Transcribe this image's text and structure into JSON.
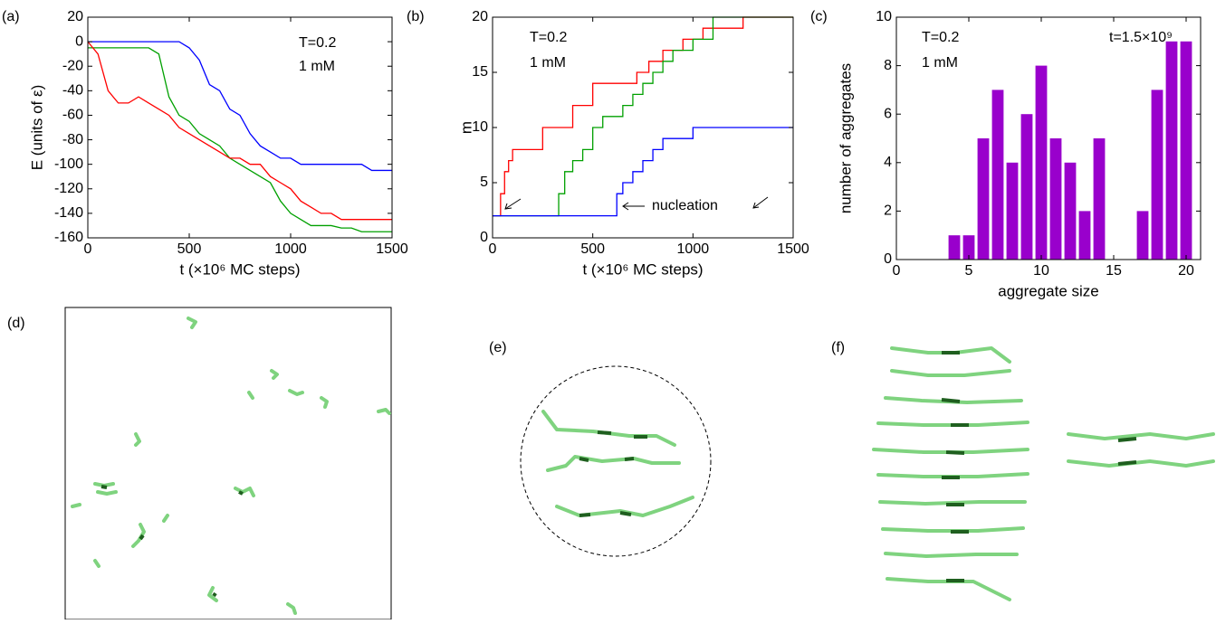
{
  "chart_data": [
    {
      "type": "line",
      "panel_label": "(a)",
      "xlabel": "t (×10⁶ MC steps)",
      "ylabel": "E (units of ε)",
      "annotations": [
        "T=0.2",
        "1 mM"
      ],
      "xlim": [
        0,
        1500
      ],
      "ylim": [
        -160,
        20
      ],
      "xticks": [
        0,
        500,
        1000,
        1500
      ],
      "yticks": [
        -160,
        -140,
        -120,
        -100,
        -80,
        -60,
        -40,
        -20,
        0,
        20
      ],
      "x": [
        0,
        50,
        100,
        150,
        200,
        250,
        300,
        350,
        400,
        450,
        500,
        550,
        600,
        650,
        700,
        750,
        800,
        850,
        900,
        950,
        1000,
        1050,
        1100,
        1150,
        1200,
        1250,
        1300,
        1350,
        1400,
        1450,
        1500
      ],
      "series": [
        {
          "color": "#0000ff",
          "values": [
            0,
            0,
            0,
            0,
            0,
            0,
            0,
            0,
            0,
            0,
            -5,
            -15,
            -35,
            -40,
            -55,
            -60,
            -75,
            -85,
            -90,
            -95,
            -95,
            -100,
            -100,
            -100,
            -100,
            -100,
            -100,
            -100,
            -105,
            -105,
            -105
          ]
        },
        {
          "color": "#00a000",
          "values": [
            -5,
            -5,
            -5,
            -5,
            -5,
            -5,
            -5,
            -10,
            -45,
            -60,
            -65,
            -75,
            -80,
            -85,
            -95,
            -100,
            -105,
            -110,
            -115,
            -130,
            -140,
            -145,
            -150,
            -150,
            -150,
            -152,
            -152,
            -155,
            -155,
            -155,
            -155
          ]
        },
        {
          "color": "#ff0000",
          "values": [
            0,
            -10,
            -40,
            -50,
            -50,
            -45,
            -50,
            -55,
            -60,
            -70,
            -75,
            -80,
            -85,
            -90,
            -95,
            -95,
            -100,
            -100,
            -110,
            -115,
            -120,
            -130,
            -135,
            -140,
            -140,
            -145,
            -145,
            -145,
            -145,
            -145,
            -145
          ]
        }
      ]
    },
    {
      "type": "line",
      "drawstyle": "steps-post",
      "panel_label": "(b)",
      "xlabel": "t (×10⁶ MC steps)",
      "ylabel": "m",
      "annotations": [
        "T=0.2",
        "1 mM",
        "nucleation"
      ],
      "xlim": [
        0,
        1500
      ],
      "ylim": [
        0,
        20
      ],
      "xticks": [
        0,
        500,
        1000,
        1500
      ],
      "yticks": [
        0,
        5,
        10,
        15,
        20
      ],
      "series": [
        {
          "color": "#ff0000",
          "x": [
            0,
            40,
            60,
            80,
            100,
            250,
            400,
            500,
            720,
            780,
            850,
            950,
            1050,
            1250,
            1500
          ],
          "values": [
            2,
            4,
            6,
            7,
            8,
            10,
            12,
            14,
            15,
            16,
            17,
            18,
            19,
            20,
            20
          ]
        },
        {
          "color": "#00a000",
          "x": [
            0,
            330,
            360,
            400,
            450,
            500,
            550,
            650,
            700,
            750,
            800,
            850,
            900,
            1000,
            1100,
            1500
          ],
          "values": [
            2,
            4,
            6,
            7,
            8,
            10,
            11,
            12,
            13,
            14,
            15,
            16,
            17,
            18,
            20,
            20
          ]
        },
        {
          "color": "#0000ff",
          "x": [
            0,
            620,
            650,
            700,
            750,
            800,
            850,
            900,
            1000,
            1500
          ],
          "values": [
            2,
            4,
            5,
            6,
            7,
            8,
            9,
            9,
            10,
            10
          ]
        }
      ]
    },
    {
      "type": "bar",
      "panel_label": "(c)",
      "xlabel": "aggregate size",
      "ylabel": "number of aggregates",
      "annotations": [
        "T=0.2",
        "1 mM",
        "t=1.5×10⁹"
      ],
      "color": "#9900cc",
      "xlim": [
        0,
        21
      ],
      "ylim": [
        0,
        10
      ],
      "xticks": [
        0,
        5,
        10,
        15,
        20
      ],
      "yticks": [
        0,
        2,
        4,
        6,
        8,
        10
      ],
      "x": [
        4,
        5,
        6,
        7,
        8,
        9,
        10,
        11,
        12,
        13,
        14,
        15,
        16,
        17,
        18,
        19,
        20
      ],
      "values": [
        1,
        1,
        5,
        7,
        4,
        6,
        8,
        5,
        4,
        2,
        5,
        0,
        0,
        2,
        7,
        9,
        9
      ]
    }
  ],
  "figures": [
    {
      "label": "(d)"
    },
    {
      "label": "(e)"
    },
    {
      "label": "(f)"
    }
  ]
}
